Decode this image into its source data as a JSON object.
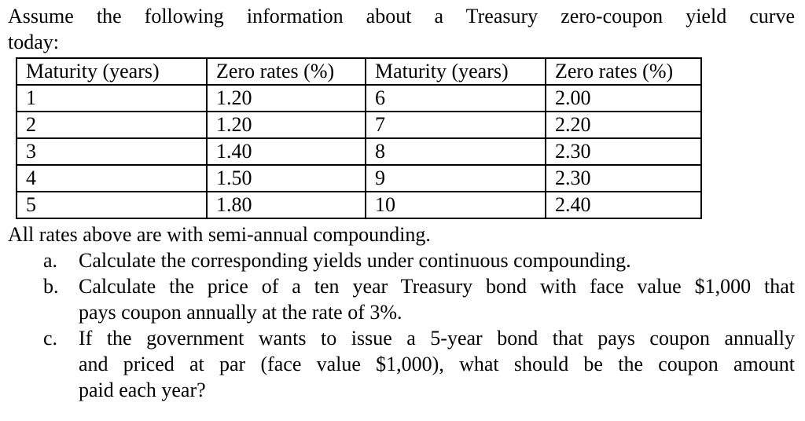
{
  "intro": {
    "lines": [
      "Assume the following information about a Treasury zero-coupon yield curve",
      "today:"
    ]
  },
  "table": {
    "headers": [
      "Maturity (years)",
      "Zero rates (%)",
      "Maturity (years)",
      "Zero rates (%)"
    ],
    "rows": [
      [
        "1",
        "1.20",
        "6",
        "2.00"
      ],
      [
        "2",
        "1.20",
        "7",
        "2.20"
      ],
      [
        "3",
        "1.40",
        "8",
        "2.30"
      ],
      [
        "4",
        "1.50",
        "9",
        "2.30"
      ],
      [
        "5",
        "1.80",
        "10",
        "2.40"
      ]
    ]
  },
  "note": "All rates above are with semi-annual compounding.",
  "questions": [
    {
      "marker": "a.",
      "lines": [
        "Calculate the corresponding yields under continuous compounding."
      ]
    },
    {
      "marker": "b.",
      "lines": [
        "Calculate the price of a ten year Treasury bond with face value $1,000 that",
        "pays coupon annually at the rate of 3%."
      ]
    },
    {
      "marker": "c.",
      "lines": [
        "If the government wants to issue a 5-year bond that pays coupon annually",
        "and priced at par (face value $1,000), what should be the coupon amount",
        "paid each year?"
      ]
    }
  ]
}
